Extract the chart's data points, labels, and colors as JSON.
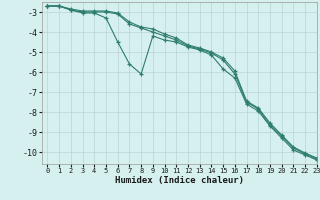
{
  "xlabel": "Humidex (Indice chaleur)",
  "background_color": "#d6f0f0",
  "grid_color": "#b8d4d4",
  "line_color": "#2e7d6e",
  "xlim": [
    -0.5,
    23
  ],
  "ylim": [
    -10.6,
    -2.5
  ],
  "yticks": [
    -10,
    -9,
    -8,
    -7,
    -6,
    -5,
    -4,
    -3
  ],
  "xticks": [
    0,
    1,
    2,
    3,
    4,
    5,
    6,
    7,
    8,
    9,
    10,
    11,
    12,
    13,
    14,
    15,
    16,
    17,
    18,
    19,
    20,
    21,
    22,
    23
  ],
  "series1_x": [
    0,
    1,
    2,
    3,
    4,
    5,
    6,
    7,
    8,
    9,
    10,
    11,
    12,
    13,
    14,
    15,
    16,
    17,
    18,
    19,
    20,
    21,
    22,
    23
  ],
  "series1_y": [
    -2.7,
    -2.7,
    -2.9,
    -3.0,
    -3.0,
    -3.0,
    -3.1,
    -3.6,
    -3.8,
    -4.0,
    -4.2,
    -4.4,
    -4.7,
    -4.85,
    -5.05,
    -5.4,
    -6.1,
    -7.5,
    -7.85,
    -8.65,
    -9.2,
    -9.8,
    -10.1,
    -10.35
  ],
  "series2_x": [
    0,
    1,
    2,
    3,
    4,
    5,
    6,
    7,
    8,
    9,
    10,
    11,
    12,
    13,
    14,
    15,
    16,
    17,
    18,
    19,
    20,
    21,
    22,
    23
  ],
  "series2_y": [
    -2.7,
    -2.7,
    -2.9,
    -3.05,
    -3.05,
    -3.3,
    -4.5,
    -5.6,
    -6.1,
    -4.2,
    -4.4,
    -4.5,
    -4.75,
    -4.9,
    -5.15,
    -5.85,
    -6.3,
    -7.6,
    -7.95,
    -8.7,
    -9.3,
    -9.9,
    -10.15,
    -10.4
  ],
  "series3_x": [
    0,
    1,
    2,
    3,
    4,
    5,
    6,
    7,
    8,
    9,
    10,
    11,
    12,
    13,
    14,
    15,
    16,
    17,
    18,
    19,
    20,
    21,
    22,
    23
  ],
  "series3_y": [
    -2.7,
    -2.7,
    -2.85,
    -2.95,
    -2.95,
    -2.95,
    -3.05,
    -3.5,
    -3.75,
    -3.85,
    -4.1,
    -4.3,
    -4.65,
    -4.8,
    -5.0,
    -5.3,
    -5.95,
    -7.45,
    -7.8,
    -8.55,
    -9.15,
    -9.75,
    -10.05,
    -10.3
  ]
}
